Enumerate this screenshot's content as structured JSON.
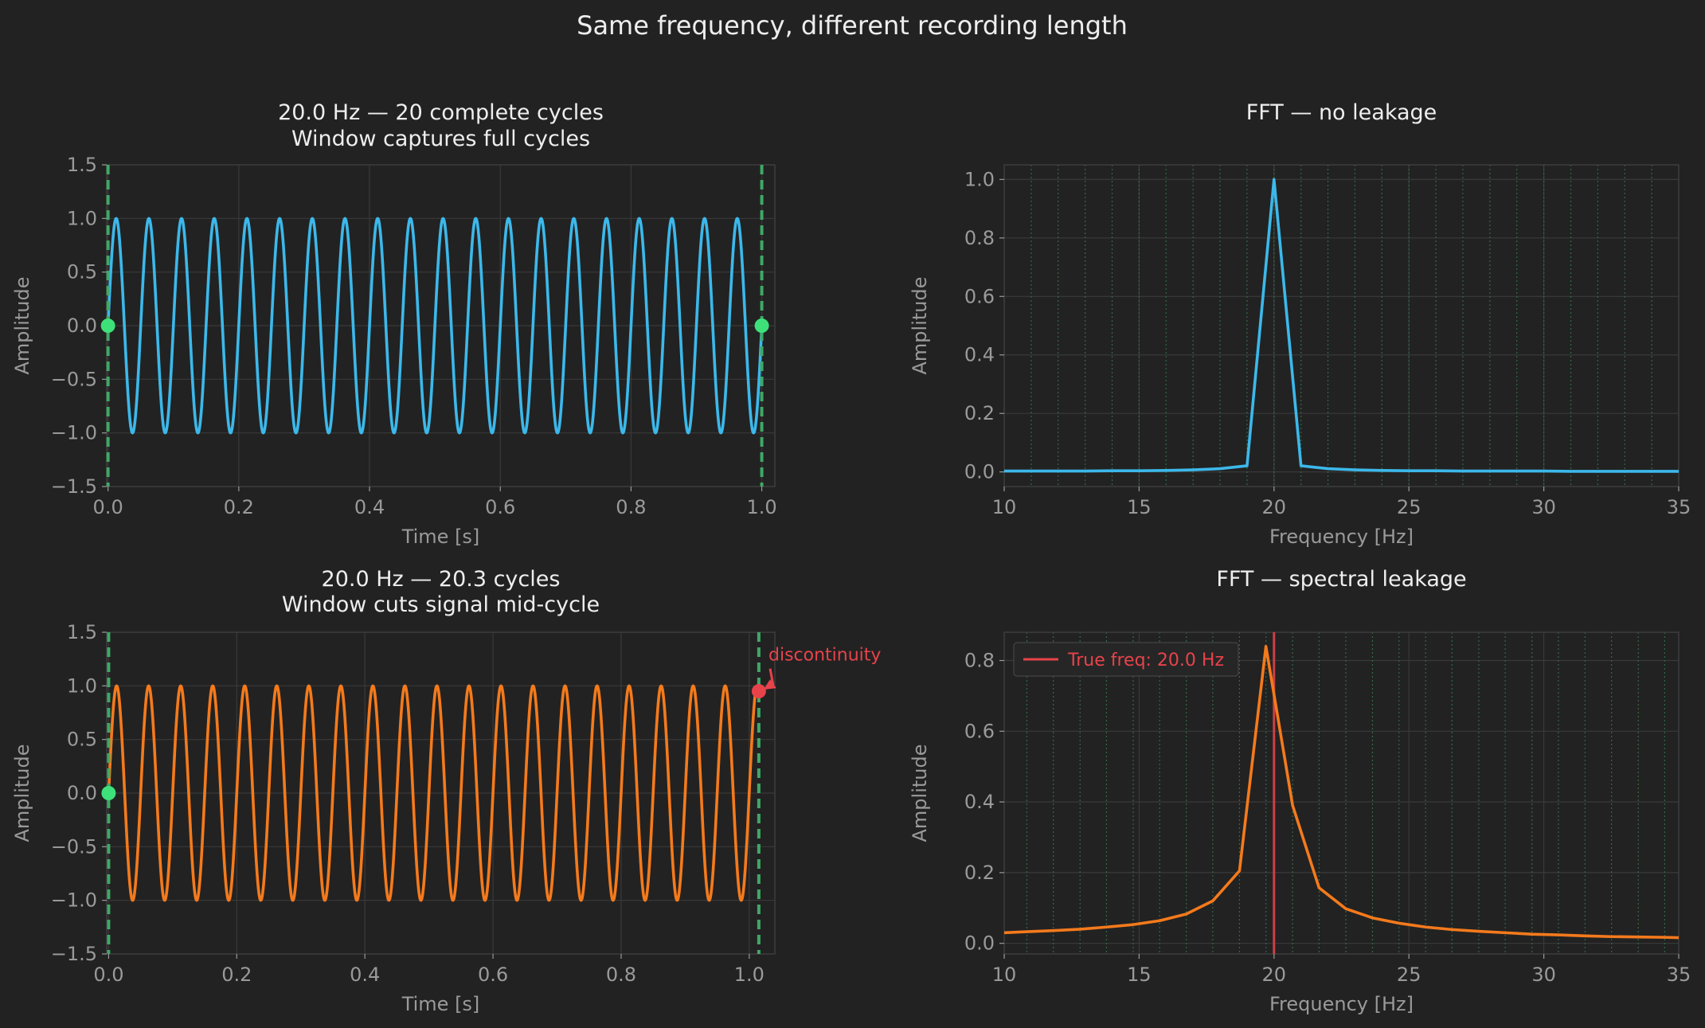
{
  "suptitle": "Same frequency, different recording length",
  "colors": {
    "background": "#222222",
    "grid": "#3a3a3a",
    "spine": "#3c3c3c",
    "text": "#eeeeee",
    "muted": "#9a9a9a",
    "blue": "#3cb8ea",
    "orange": "#f47a1c",
    "green_window": "#3fa866",
    "green_marker": "#3ee07a",
    "red": "#e8434b",
    "bin_lines": "#2f6b47"
  },
  "chart_data": [
    {
      "id": "time_full",
      "type": "line",
      "title": "20.0 Hz — 20 complete cycles\nWindow captures full cycles",
      "xlabel": "Time [s]",
      "ylabel": "Amplitude",
      "xlim": [
        -0.002,
        1.02
      ],
      "ylim": [
        -1.5,
        1.5
      ],
      "xticks": [
        0.0,
        0.2,
        0.4,
        0.6,
        0.8,
        1.0
      ],
      "xtick_labels": [
        "0.0",
        "0.2",
        "0.4",
        "0.6",
        "0.8",
        "1.0"
      ],
      "yticks": [
        -1.5,
        -1.0,
        -0.5,
        0.0,
        0.5,
        1.0,
        1.5
      ],
      "ytick_labels": [
        "−1.5",
        "−1.0",
        "−0.5",
        "0.0",
        "0.5",
        "1.0",
        "1.5"
      ],
      "grid": true,
      "signal": {
        "frequency_hz": 20.0,
        "amplitude": 1.0,
        "t_start": 0.0,
        "t_end": 1.0
      },
      "color": "#3cb8ea",
      "window_lines": [
        0.0,
        1.0
      ],
      "markers": [
        {
          "x": 0.0,
          "y": 0.0,
          "color": "#3ee07a"
        },
        {
          "x": 1.0,
          "y": 0.0,
          "color": "#3ee07a"
        }
      ]
    },
    {
      "id": "fft_full",
      "type": "line",
      "title": "FFT — no leakage",
      "xlabel": "Frequency [Hz]",
      "ylabel": "Amplitude",
      "xlim": [
        10,
        35
      ],
      "ylim": [
        -0.05,
        1.05
      ],
      "xticks": [
        10,
        15,
        20,
        25,
        30,
        35
      ],
      "xtick_labels": [
        "10",
        "15",
        "20",
        "25",
        "30",
        "35"
      ],
      "yticks": [
        0.0,
        0.2,
        0.4,
        0.6,
        0.8,
        1.0
      ],
      "ytick_labels": [
        "0.0",
        "0.2",
        "0.4",
        "0.6",
        "0.8",
        "1.0"
      ],
      "grid": true,
      "color": "#3cb8ea",
      "bin_lines": [
        10,
        11,
        12,
        13,
        14,
        15,
        16,
        17,
        18,
        19,
        20,
        21,
        22,
        23,
        24,
        25,
        26,
        27,
        28,
        29,
        30,
        31,
        32,
        33,
        34,
        35
      ],
      "x": [
        10,
        11,
        12,
        13,
        14,
        15,
        16,
        17,
        18,
        19,
        20,
        21,
        22,
        23,
        24,
        25,
        26,
        27,
        28,
        29,
        30,
        31,
        32,
        33,
        34,
        35
      ],
      "y": [
        0.003,
        0.003,
        0.003,
        0.003,
        0.004,
        0.004,
        0.005,
        0.007,
        0.011,
        0.021,
        1.0,
        0.021,
        0.011,
        0.007,
        0.005,
        0.004,
        0.004,
        0.003,
        0.003,
        0.003,
        0.003,
        0.002,
        0.002,
        0.002,
        0.002,
        0.002
      ]
    },
    {
      "id": "time_partial",
      "type": "line",
      "title": "20.0 Hz — 20.3 cycles\nWindow cuts signal mid-cycle",
      "xlabel": "Time [s]",
      "ylabel": "Amplitude",
      "xlim": [
        -0.003,
        1.04
      ],
      "ylim": [
        -1.5,
        1.5
      ],
      "xticks": [
        0.0,
        0.2,
        0.4,
        0.6,
        0.8,
        1.0
      ],
      "xtick_labels": [
        "0.0",
        "0.2",
        "0.4",
        "0.6",
        "0.8",
        "1.0"
      ],
      "yticks": [
        -1.5,
        -1.0,
        -0.5,
        0.0,
        0.5,
        1.0,
        1.5
      ],
      "ytick_labels": [
        "−1.5",
        "−1.0",
        "−0.5",
        "0.0",
        "0.5",
        "1.0",
        "1.5"
      ],
      "grid": true,
      "signal": {
        "frequency_hz": 20.0,
        "amplitude": 1.0,
        "t_start": 0.0,
        "t_end": 1.015
      },
      "color": "#f47a1c",
      "window_lines": [
        0.0,
        1.015
      ],
      "markers": [
        {
          "x": 0.0,
          "y": 0.0,
          "color": "#3ee07a"
        },
        {
          "x": 1.015,
          "y": 0.95,
          "color": "#e8434b"
        }
      ],
      "annotation": {
        "text": "discontinuity",
        "x": 1.015,
        "y": 0.95,
        "text_x": 1.04,
        "text_y": 1.25,
        "color": "#e8434b"
      }
    },
    {
      "id": "fft_partial",
      "type": "line",
      "title": "FFT — spectral leakage",
      "xlabel": "Frequency [Hz]",
      "ylabel": "Amplitude",
      "xlim": [
        10,
        35
      ],
      "ylim": [
        -0.03,
        0.88
      ],
      "xticks": [
        10,
        15,
        20,
        25,
        30,
        35
      ],
      "xtick_labels": [
        "10",
        "15",
        "20",
        "25",
        "30",
        "35"
      ],
      "yticks": [
        0.0,
        0.2,
        0.4,
        0.6,
        0.8
      ],
      "ytick_labels": [
        "0.0",
        "0.2",
        "0.4",
        "0.6",
        "0.8"
      ],
      "grid": true,
      "color": "#f47a1c",
      "bin_lines": [
        10.84,
        11.82,
        12.81,
        13.79,
        14.78,
        15.76,
        16.75,
        17.73,
        18.72,
        19.7,
        20.69,
        21.67,
        22.66,
        23.65,
        24.63,
        25.62,
        26.6,
        27.59,
        28.57,
        29.56,
        30.54,
        31.53,
        32.51,
        33.5,
        34.48
      ],
      "x": [
        10,
        10.84,
        11.82,
        12.81,
        13.79,
        14.78,
        15.76,
        16.75,
        17.73,
        18.72,
        19.7,
        20.69,
        21.67,
        22.66,
        23.65,
        24.63,
        25.62,
        26.6,
        27.59,
        28.57,
        29.56,
        30.54,
        31.53,
        32.51,
        33.5,
        34.48,
        35
      ],
      "y": [
        0.03,
        0.033,
        0.036,
        0.04,
        0.046,
        0.053,
        0.064,
        0.083,
        0.12,
        0.205,
        0.84,
        0.39,
        0.157,
        0.098,
        0.072,
        0.057,
        0.046,
        0.039,
        0.034,
        0.03,
        0.026,
        0.024,
        0.021,
        0.019,
        0.018,
        0.017,
        0.016
      ],
      "vline": {
        "x": 20.0,
        "color": "#e8434b"
      },
      "legend": {
        "label": "True freq: 20.0 Hz",
        "position": "top-left",
        "color": "#e8434b"
      }
    }
  ]
}
